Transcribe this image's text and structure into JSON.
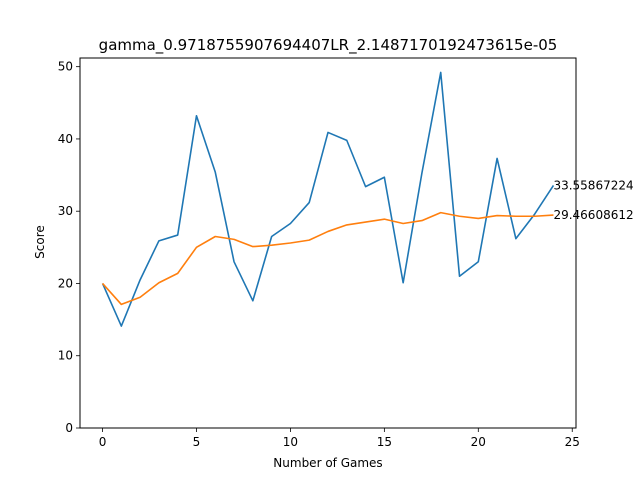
{
  "chart_data": {
    "type": "line",
    "title": "gamma_0.9718755907694407LR_2.1487170192473615e-05",
    "xlabel": "Number of Games",
    "ylabel": "Score",
    "xlim": [
      -1.2,
      25.2
    ],
    "ylim": [
      0,
      51.2
    ],
    "xticks": [
      0,
      5,
      10,
      15,
      20,
      25
    ],
    "yticks": [
      0,
      10,
      20,
      30,
      40,
      50
    ],
    "grid": false,
    "legend": "none",
    "x": [
      0,
      1,
      2,
      3,
      4,
      5,
      6,
      7,
      8,
      9,
      10,
      11,
      12,
      13,
      14,
      15,
      16,
      17,
      18,
      19,
      20,
      21,
      22,
      23,
      24
    ],
    "series": [
      {
        "color": "#1f77b4",
        "values": [
          20,
          14.1,
          20.5,
          25.9,
          26.7,
          43.2,
          35.4,
          23.0,
          17.6,
          26.5,
          28.3,
          31.2,
          40.9,
          39.8,
          33.4,
          34.7,
          20.1,
          35.3,
          49.2,
          21.0,
          23.0,
          37.3,
          26.2,
          29.6,
          33.5586722
        ],
        "end_label": "33.55867224"
      },
      {
        "color": "#ff7f0e",
        "values": [
          20,
          17.1,
          18.1,
          20.1,
          21.4,
          25.0,
          26.5,
          26.1,
          25.1,
          25.3,
          25.6,
          26.0,
          27.2,
          28.1,
          28.5,
          28.9,
          28.3,
          28.7,
          29.8,
          29.3,
          29.0,
          29.4,
          29.3,
          29.3,
          29.4660861
        ],
        "end_label": "29.46608612"
      }
    ]
  }
}
